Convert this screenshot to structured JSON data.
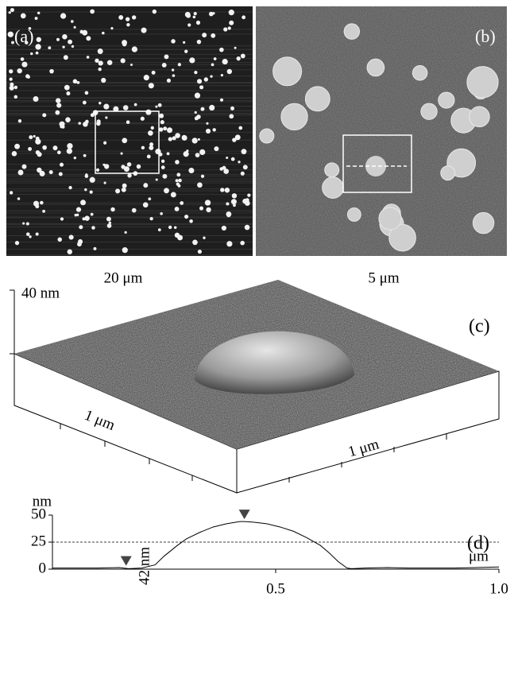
{
  "figure": {
    "label_a": "(a)",
    "label_b": "(b)",
    "scale_a": "20 μm",
    "scale_b": "5 μm",
    "label_c": "(c)",
    "height_c": "40 nm",
    "axis_c1": "1 μm",
    "axis_c2": "1 μm"
  },
  "chart_data": {
    "type": "line",
    "label": "(d)",
    "y_label": "nm",
    "x_label": "μm",
    "annotation": "42 nm",
    "x": [
      0,
      0.05,
      0.1,
      0.15,
      0.17,
      0.2,
      0.23,
      0.25,
      0.28,
      0.3,
      0.33,
      0.36,
      0.39,
      0.42,
      0.43,
      0.45,
      0.48,
      0.51,
      0.54,
      0.57,
      0.6,
      0.62,
      0.64,
      0.66,
      0.67,
      0.7,
      0.75,
      0.8,
      0.85,
      0.9,
      0.95,
      1.0
    ],
    "values": [
      1,
      1,
      1,
      1.5,
      0.5,
      1,
      4,
      12,
      22,
      28,
      34,
      39,
      42,
      44,
      44,
      43.5,
      42,
      39,
      35,
      29,
      22,
      15,
      7,
      1,
      0.5,
      1,
      1.5,
      1,
      1,
      1,
      1.5,
      2
    ],
    "color": "#000000",
    "reference_line": 25,
    "markers": [
      {
        "x": 0.165,
        "y": 1
      },
      {
        "x": 0.43,
        "y": 44
      }
    ],
    "xlim": [
      0,
      1
    ],
    "ylim": [
      0,
      50
    ],
    "yticks": [
      0,
      25,
      50
    ],
    "xticks": [
      0.5,
      {
        "value": 1,
        "label": "1.0"
      }
    ]
  }
}
